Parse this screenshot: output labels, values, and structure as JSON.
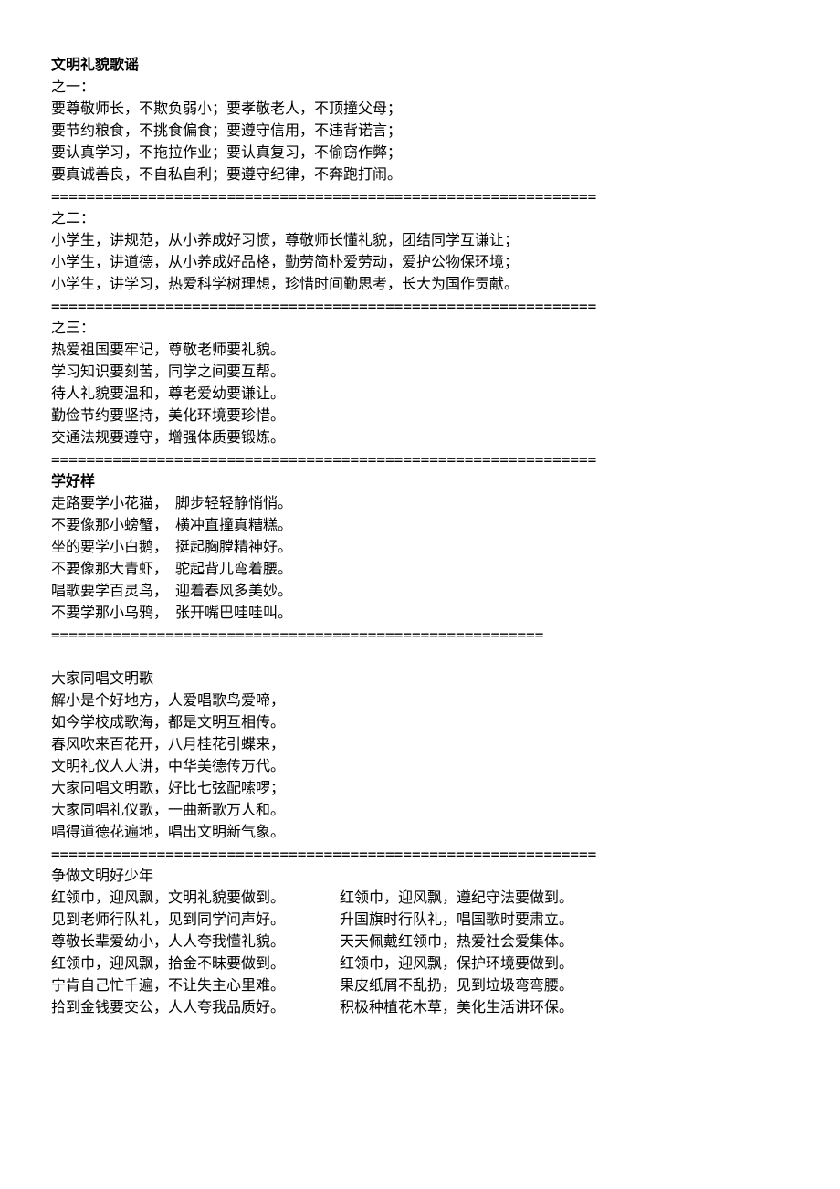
{
  "title": "文明礼貌歌谣",
  "sep": "==============================================================",
  "sep_short": "========================================================",
  "s1": {
    "heading": "之一：",
    "lines": [
      "要尊敬师长，不欺负弱小；要孝敬老人，不顶撞父母；",
      "要节约粮食，不挑食偏食；要遵守信用，不违背诺言；",
      "要认真学习，不拖拉作业；要认真复习，不偷窃作弊；",
      "要真诚善良，不自私自利；要遵守纪律，不奔跑打闹。"
    ]
  },
  "s2": {
    "heading": "之二：",
    "lines": [
      "小学生，讲规范，从小养成好习惯，尊敬师长懂礼貌，团结同学互谦让；",
      "小学生，讲道德，从小养成好品格，勤劳简朴爱劳动，爱护公物保环境；",
      "小学生，讲学习，热爱科学树理想，珍惜时间勤思考，长大为国作贡献。"
    ]
  },
  "s3": {
    "heading": "之三：",
    "lines": [
      "热爱祖国要牢记，尊敬老师要礼貌。",
      "学习知识要刻苦，同学之间要互帮。",
      "待人礼貌要温和，尊老爱幼要谦让。",
      "勤俭节约要坚持，美化环境要珍惜。",
      "交通法规要遵守，增强体质要锻炼。"
    ]
  },
  "s4": {
    "heading": "学好样",
    "lines": [
      "走路要学小花猫，  脚步轻轻静悄悄。",
      "不要像那小螃蟹，  横冲直撞真糟糕。",
      "坐的要学小白鹅，  挺起胸膛精神好。",
      "不要像那大青虾，  驼起背儿弯着腰。",
      "唱歌要学百灵鸟，  迎着春风多美妙。",
      "不要学那小乌鸦，  张开嘴巴哇哇叫。"
    ]
  },
  "s5": {
    "heading": "大家同唱文明歌",
    "lines": [
      "解小是个好地方，人爱唱歌鸟爱啼，",
      "如今学校成歌海，都是文明互相传。",
      "春风吹来百花开，八月桂花引蝶来，",
      "文明礼仪人人讲，中华美德传万代。",
      "大家同唱文明歌，好比七弦配嗦啰；",
      "大家同唱礼仪歌，一曲新歌万人和。",
      "唱得道德花遍地，唱出文明新气象。"
    ]
  },
  "s6": {
    "heading": "争做文明好少年",
    "left": [
      "红领巾，迎风飘，文明礼貌要做到。",
      "见到老师行队礼，见到同学问声好。",
      "尊敬长辈爱幼小，人人夸我懂礼貌。",
      "红领巾，迎风飘，拾金不昧要做到。",
      "宁肯自己忙千遍，不让失主心里难。",
      "拾到金钱要交公，人人夸我品质好。"
    ],
    "right": [
      "红领巾，迎风飘，遵纪守法要做到。",
      "升国旗时行队礼，唱国歌时要肃立。",
      "天天佩戴红领巾，热爱社会爱集体。",
      "红领巾，迎风飘，保护环境要做到。",
      "果皮纸屑不乱扔，见到垃圾弯弯腰。",
      "积极种植花木草，美化生活讲环保。"
    ]
  }
}
